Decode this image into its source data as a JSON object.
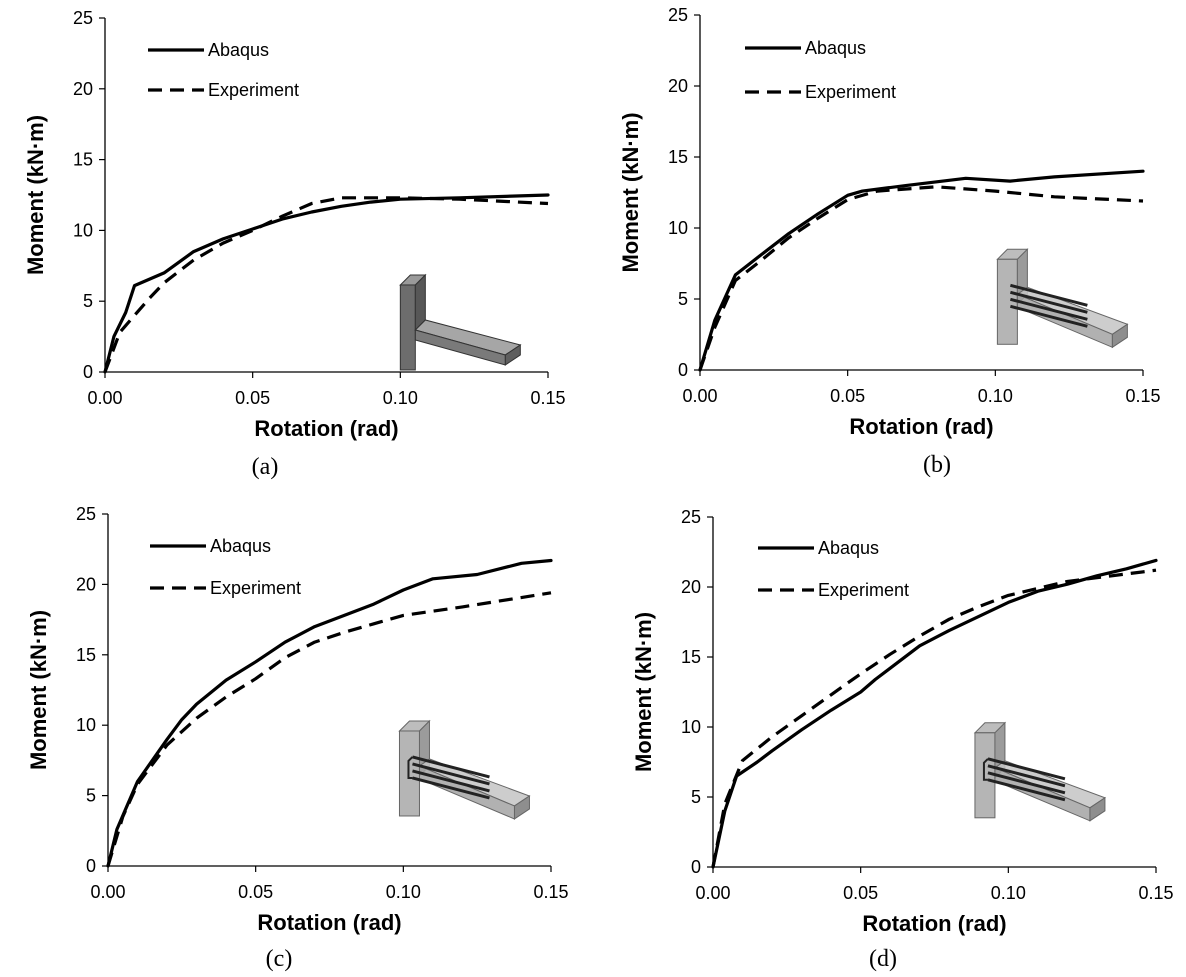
{
  "chart_data": [
    {
      "type": "line",
      "panel_label": "(a)",
      "xlabel": "Rotation (rad)",
      "ylabel": "Moment (kN·m)",
      "xlim": [
        0,
        0.15
      ],
      "ylim": [
        0,
        25
      ],
      "xticks": [
        "0.00",
        "0.05",
        "0.10",
        "0.15"
      ],
      "yticks": [
        "0",
        "5",
        "10",
        "15",
        "20",
        "25"
      ],
      "grid": false,
      "legend_position": "top-left",
      "inset": "t-joint-solid-model",
      "series": [
        {
          "name": "Abaqus",
          "style": "solid",
          "x": [
            0,
            0.003,
            0.007,
            0.01,
            0.02,
            0.03,
            0.04,
            0.05,
            0.06,
            0.07,
            0.08,
            0.09,
            0.1,
            0.12,
            0.15
          ],
          "y": [
            0,
            2.5,
            4.2,
            6.1,
            7.0,
            8.5,
            9.4,
            10.1,
            10.8,
            11.3,
            11.7,
            12.0,
            12.2,
            12.3,
            12.5
          ]
        },
        {
          "name": "Experiment",
          "style": "dashed",
          "x": [
            0,
            0.005,
            0.01,
            0.015,
            0.02,
            0.03,
            0.04,
            0.05,
            0.06,
            0.07,
            0.08,
            0.1,
            0.12,
            0.15
          ],
          "y": [
            0,
            2.8,
            4.0,
            5.2,
            6.3,
            7.9,
            9.1,
            10.0,
            11.0,
            11.9,
            12.3,
            12.3,
            12.2,
            11.9
          ]
        }
      ]
    },
    {
      "type": "line",
      "panel_label": "(b)",
      "xlabel": "Rotation (rad)",
      "ylabel": "Moment (kN·m)",
      "xlim": [
        0,
        0.15
      ],
      "ylim": [
        0,
        25
      ],
      "xticks": [
        "0.00",
        "0.05",
        "0.10",
        "0.15"
      ],
      "yticks": [
        "0",
        "5",
        "10",
        "15",
        "20",
        "25"
      ],
      "grid": false,
      "legend_position": "top-left",
      "inset": "t-joint-with-rebars",
      "series": [
        {
          "name": "Abaqus",
          "style": "solid",
          "x": [
            0,
            0.005,
            0.012,
            0.02,
            0.03,
            0.04,
            0.05,
            0.055,
            0.07,
            0.09,
            0.105,
            0.12,
            0.15
          ],
          "y": [
            0,
            3.5,
            6.7,
            8.0,
            9.6,
            11.0,
            12.3,
            12.6,
            13.0,
            13.5,
            13.3,
            13.6,
            14.0
          ]
        },
        {
          "name": "Experiment",
          "style": "dashed",
          "x": [
            0,
            0.005,
            0.012,
            0.02,
            0.03,
            0.04,
            0.05,
            0.06,
            0.08,
            0.1,
            0.12,
            0.15
          ],
          "y": [
            0,
            3.0,
            6.3,
            7.6,
            9.3,
            10.7,
            12.0,
            12.6,
            12.9,
            12.6,
            12.2,
            11.9
          ]
        }
      ]
    },
    {
      "type": "line",
      "panel_label": "(c)",
      "xlabel": "Rotation (rad)",
      "ylabel": "Moment (kN·m)",
      "xlim": [
        0,
        0.15
      ],
      "ylim": [
        0,
        25
      ],
      "xticks": [
        "0.00",
        "0.05",
        "0.10",
        "0.15"
      ],
      "yticks": [
        "0",
        "5",
        "10",
        "15",
        "20",
        "25"
      ],
      "grid": false,
      "legend_position": "top-left",
      "inset": "t-joint-with-rebars",
      "series": [
        {
          "name": "Abaqus",
          "style": "solid",
          "x": [
            0,
            0.003,
            0.01,
            0.02,
            0.025,
            0.03,
            0.04,
            0.05,
            0.06,
            0.07,
            0.08,
            0.09,
            0.1,
            0.11,
            0.125,
            0.14,
            0.15
          ],
          "y": [
            0,
            2.6,
            6.0,
            9.0,
            10.4,
            11.5,
            13.2,
            14.5,
            15.9,
            17.0,
            17.8,
            18.6,
            19.6,
            20.4,
            20.7,
            21.5,
            21.7
          ]
        },
        {
          "name": "Experiment",
          "style": "dashed",
          "x": [
            0,
            0.005,
            0.01,
            0.02,
            0.03,
            0.04,
            0.05,
            0.06,
            0.07,
            0.08,
            0.09,
            0.1,
            0.12,
            0.15
          ],
          "y": [
            0,
            3.5,
            5.8,
            8.6,
            10.5,
            12.0,
            13.3,
            14.8,
            15.9,
            16.6,
            17.2,
            17.8,
            18.4,
            19.4
          ]
        }
      ]
    },
    {
      "type": "line",
      "panel_label": "(d)",
      "xlabel": "Rotation (rad)",
      "ylabel": "Moment (kN·m)",
      "xlim": [
        0,
        0.15
      ],
      "ylim": [
        0,
        25
      ],
      "xticks": [
        "0.00",
        "0.05",
        "0.10",
        "0.15"
      ],
      "yticks": [
        "0",
        "5",
        "10",
        "15",
        "20",
        "25"
      ],
      "grid": false,
      "legend_position": "top-left",
      "inset": "t-joint-with-rebars",
      "series": [
        {
          "name": "Abaqus",
          "style": "solid",
          "x": [
            0,
            0.004,
            0.008,
            0.015,
            0.02,
            0.03,
            0.04,
            0.05,
            0.055,
            0.06,
            0.07,
            0.08,
            0.09,
            0.1,
            0.11,
            0.12,
            0.13,
            0.14,
            0.15
          ],
          "y": [
            0,
            4.0,
            6.5,
            7.5,
            8.3,
            9.8,
            11.2,
            12.5,
            13.4,
            14.2,
            15.8,
            16.9,
            17.9,
            18.9,
            19.7,
            20.2,
            20.8,
            21.3,
            21.9
          ]
        },
        {
          "name": "Experiment",
          "style": "dashed",
          "x": [
            0,
            0.004,
            0.01,
            0.02,
            0.03,
            0.04,
            0.05,
            0.06,
            0.07,
            0.08,
            0.09,
            0.1,
            0.12,
            0.15
          ],
          "y": [
            0,
            4.5,
            7.6,
            9.3,
            10.8,
            12.3,
            13.8,
            15.2,
            16.5,
            17.7,
            18.6,
            19.4,
            20.4,
            21.2
          ]
        }
      ]
    }
  ]
}
